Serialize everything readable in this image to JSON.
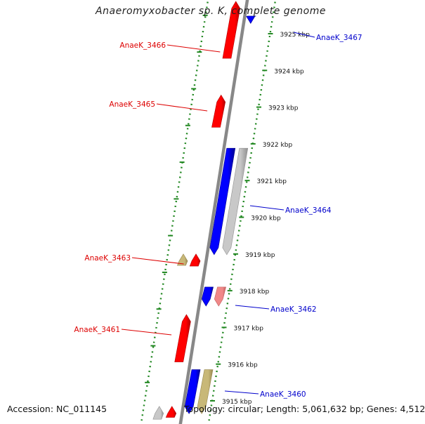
{
  "title": "Anaeromyxobacter sp. K, complete genome",
  "footer": {
    "accession": "Accession: NC_011145",
    "summary": "Topology: circular; Length: 5,061,632 bp; Genes: 4,512"
  },
  "ruler": {
    "unit": "kbp",
    "ticks": [
      {
        "kbp": 3925,
        "label": "3925 kbp"
      },
      {
        "kbp": 3924,
        "label": "3924 kbp"
      },
      {
        "kbp": 3923,
        "label": "3923 kbp"
      },
      {
        "kbp": 3922,
        "label": "3922 kbp"
      },
      {
        "kbp": 3921,
        "label": "3921 kbp"
      },
      {
        "kbp": 3920,
        "label": "3920 kbp"
      },
      {
        "kbp": 3919,
        "label": "3919 kbp"
      },
      {
        "kbp": 3918,
        "label": "3918 kbp"
      },
      {
        "kbp": 3917,
        "label": "3917 kbp"
      },
      {
        "kbp": 3916,
        "label": "3916 kbp"
      },
      {
        "kbp": 3915,
        "label": "3915 kbp"
      }
    ]
  },
  "colors": {
    "forward_gene": "#ff0000",
    "reverse_gene": "#0000ff",
    "light_red": "#f08888",
    "gray_feature": "#c8c8c8",
    "khaki_feature": "#c8b878",
    "backbone": "#888888",
    "dotted_guide": "#228822",
    "forward_label": "#dd0000",
    "reverse_label": "#0000cc"
  },
  "features": [
    {
      "locus": "AnaeK_3466",
      "track": "forward-inner",
      "start_kbp": 3924.33,
      "end_kbp": 3925.88,
      "color": "forward_gene",
      "labeled": true
    },
    {
      "locus": "AnaeK_3465",
      "track": "forward-inner",
      "start_kbp": 3922.45,
      "end_kbp": 3923.33,
      "color": "forward_gene",
      "labeled": true
    },
    {
      "locus": "AnaeK_3464",
      "track": "reverse-inner",
      "start_kbp": 3918.98,
      "end_kbp": 3921.88,
      "color": "reverse_gene",
      "labeled": true
    },
    {
      "locus": "",
      "track": "reverse-outer",
      "start_kbp": 3918.98,
      "end_kbp": 3921.88,
      "color": "gray_feature",
      "labeled": false
    },
    {
      "locus": "AnaeK_3463",
      "track": "forward-inner",
      "start_kbp": 3918.67,
      "end_kbp": 3919.0,
      "color": "forward_gene",
      "labeled": true
    },
    {
      "locus": "",
      "track": "forward-outer",
      "start_kbp": 3918.69,
      "end_kbp": 3919.0,
      "color": "khaki_feature",
      "labeled": false
    },
    {
      "locus": "AnaeK_3462",
      "track": "reverse-inner",
      "start_kbp": 3917.58,
      "end_kbp": 3918.1,
      "color": "reverse_gene",
      "labeled": true
    },
    {
      "locus": "",
      "track": "reverse-outer",
      "start_kbp": 3917.58,
      "end_kbp": 3918.1,
      "color": "light_red",
      "labeled": false
    },
    {
      "locus": "AnaeK_3461",
      "track": "forward-inner",
      "start_kbp": 3916.06,
      "end_kbp": 3917.35,
      "color": "forward_gene",
      "labeled": true
    },
    {
      "locus": "AnaeK_3460",
      "track": "reverse-inner",
      "start_kbp": 3914.65,
      "end_kbp": 3915.85,
      "color": "reverse_gene",
      "labeled": true
    },
    {
      "locus": "",
      "track": "reverse-outer",
      "start_kbp": 3914.65,
      "end_kbp": 3915.85,
      "color": "khaki_feature",
      "labeled": false
    },
    {
      "locus": "AnaeK_3467",
      "track": "reverse-inner",
      "start_kbp": 3925.28,
      "end_kbp": 3925.48,
      "color": "reverse_gene",
      "labeled": true
    },
    {
      "locus": "",
      "track": "forward-inner",
      "start_kbp": 3914.55,
      "end_kbp": 3914.85,
      "color": "forward_gene",
      "labeled": false
    },
    {
      "locus": "",
      "track": "forward-outer",
      "start_kbp": 3914.5,
      "end_kbp": 3914.85,
      "color": "gray_feature",
      "labeled": false
    }
  ]
}
